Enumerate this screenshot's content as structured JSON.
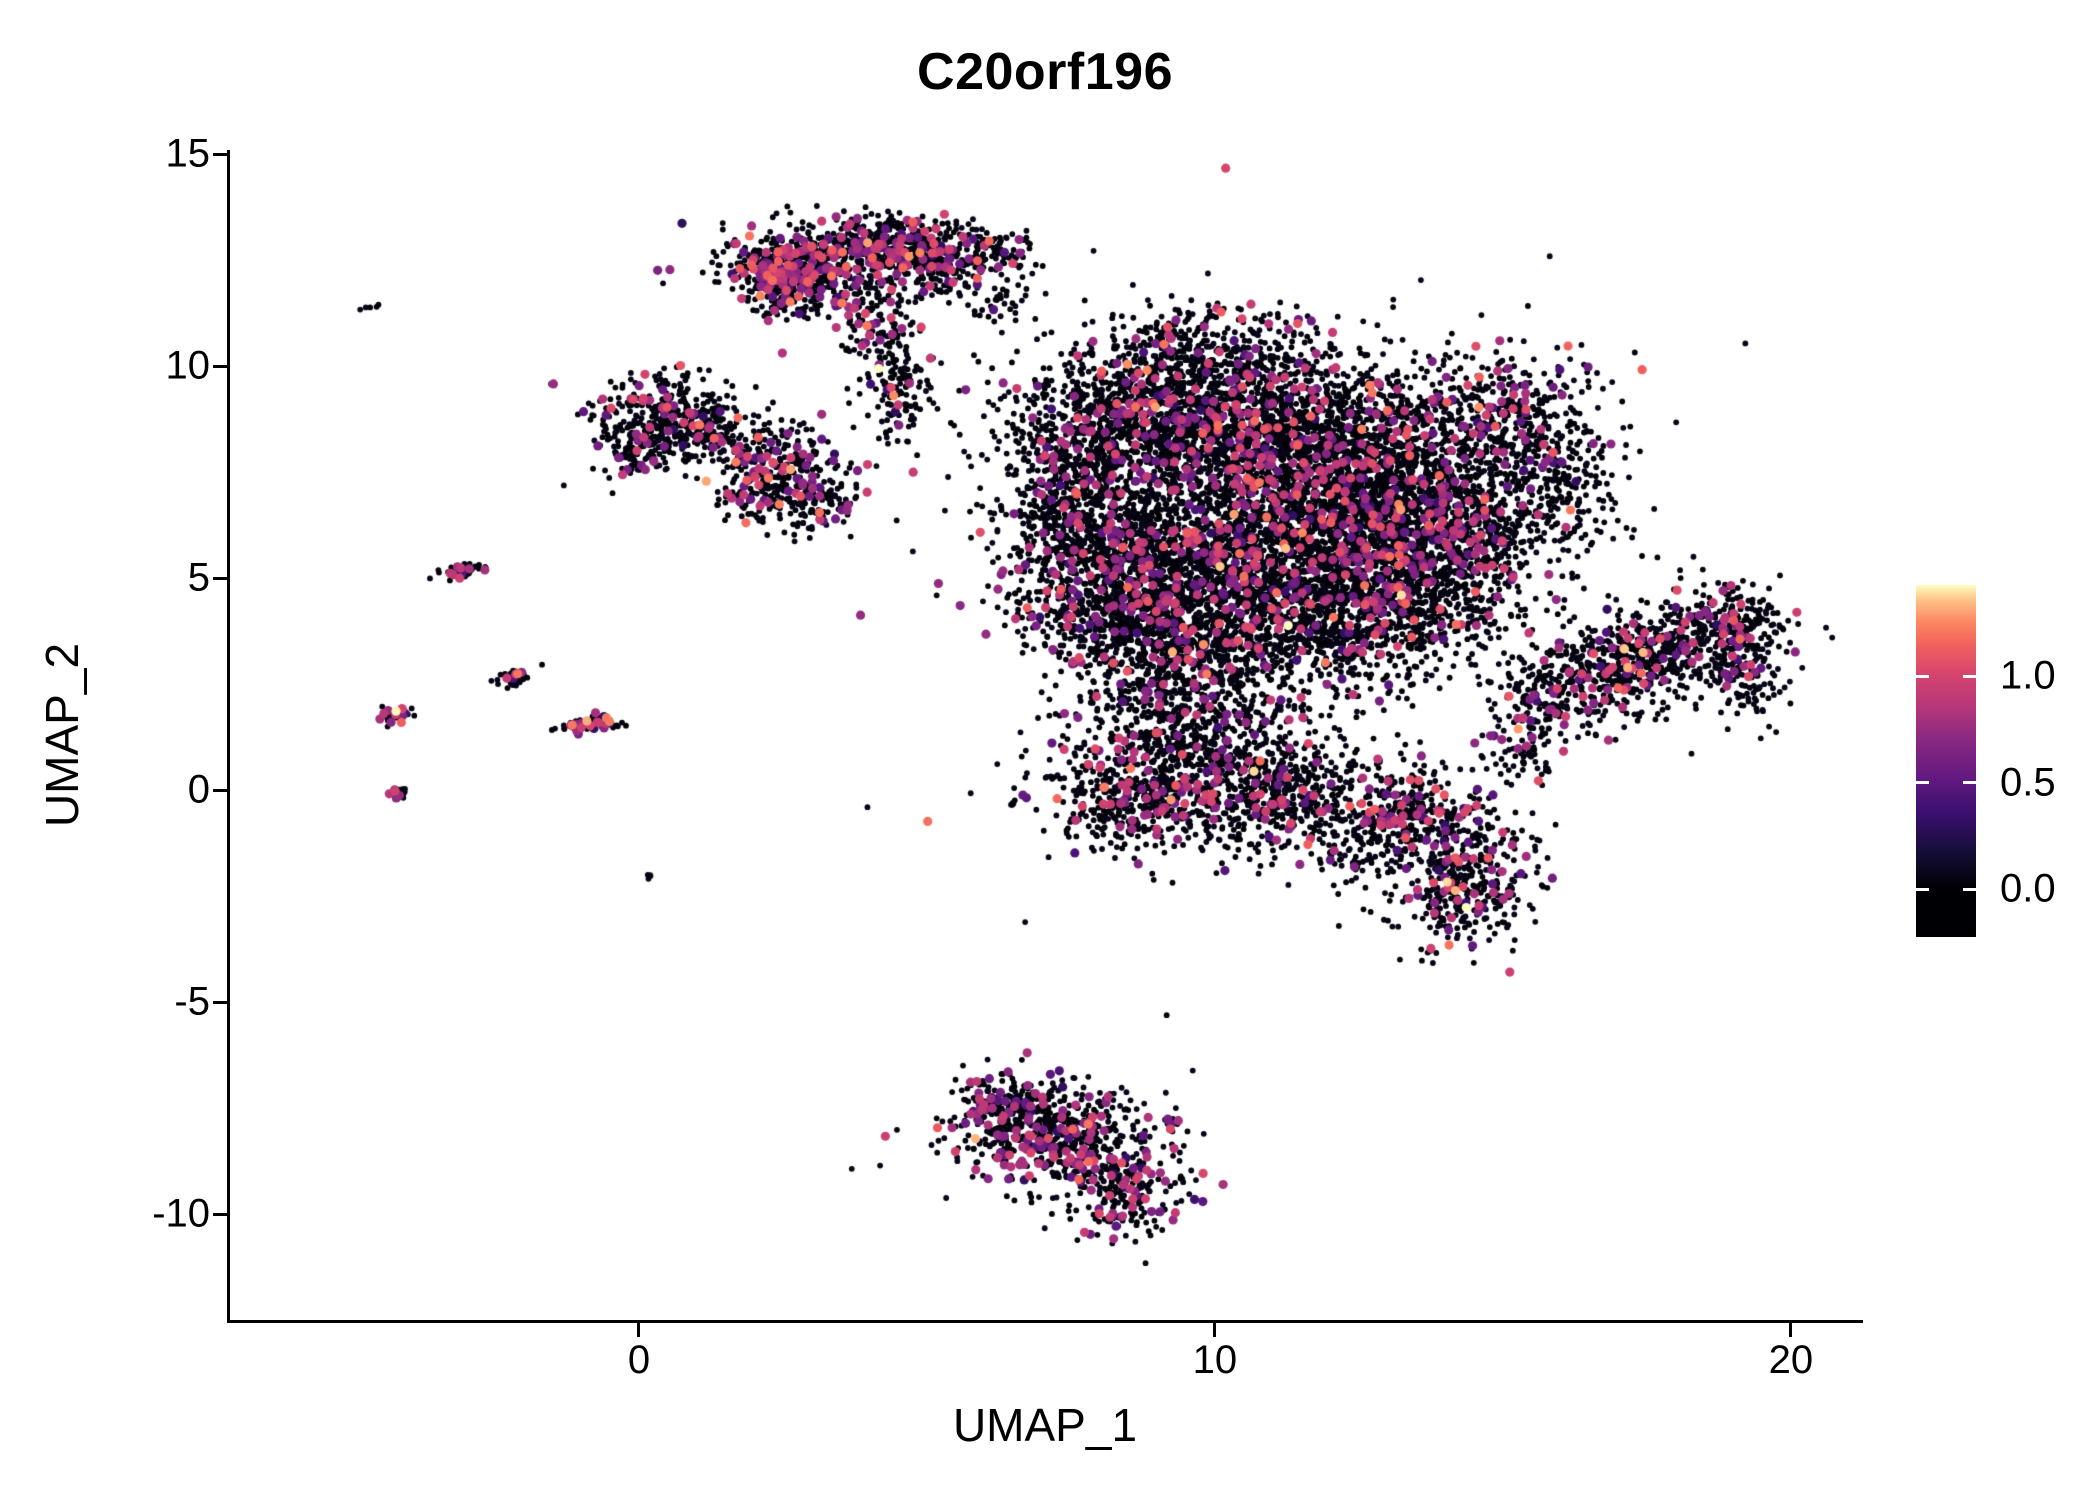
{
  "chart_data": {
    "type": "scatter",
    "plot_kind": "umap-feature-plot",
    "title": "C20orf196",
    "xlabel": "UMAP_1",
    "ylabel": "UMAP_2",
    "xlim": [
      -7.1,
      21.2
    ],
    "ylim": [
      -12.5,
      15.1
    ],
    "xticks": [
      0,
      10,
      20
    ],
    "yticks": [
      15,
      10,
      5,
      0,
      -5,
      -10
    ],
    "grid": false,
    "background": "#ffffff",
    "point_color_scale": "magma",
    "dot_radius": 2.9,
    "expr_dot_radius": 4.6,
    "expr_value_mean": 0.78,
    "expr_value_sd": 0.22,
    "expr_value_min": 0.3,
    "seed": 42,
    "cluster_fields": [
      "center_x",
      "center_y",
      "sd_x",
      "sd_y",
      "rot_deg",
      "n_points",
      "expressing_fraction"
    ],
    "clusters": [
      [
        -4.6,
        11.4,
        0.07,
        0.05,
        0,
        5,
        0.1
      ],
      [
        3.3,
        12.5,
        0.95,
        0.45,
        5,
        650,
        0.22
      ],
      [
        4.6,
        12.85,
        0.5,
        0.3,
        0,
        200,
        0.18
      ],
      [
        2.6,
        11.9,
        0.45,
        0.35,
        -20,
        180,
        0.2
      ],
      [
        4.2,
        10.9,
        0.35,
        0.55,
        0,
        130,
        0.12
      ],
      [
        4.5,
        9.3,
        0.3,
        0.6,
        0,
        110,
        0.1
      ],
      [
        6.1,
        12.8,
        0.35,
        0.25,
        0,
        70,
        0.12
      ],
      [
        6.3,
        11.5,
        0.3,
        0.5,
        0,
        40,
        0.08
      ],
      [
        5.3,
        12.3,
        0.45,
        0.4,
        0,
        130,
        0.15
      ],
      [
        0.5,
        8.8,
        0.6,
        0.5,
        0,
        330,
        0.15
      ],
      [
        -0.1,
        8.0,
        0.3,
        0.3,
        0,
        90,
        0.15
      ],
      [
        1.4,
        8.4,
        0.45,
        0.4,
        0,
        90,
        0.1
      ],
      [
        2.4,
        7.4,
        0.55,
        0.6,
        0,
        340,
        0.2
      ],
      [
        3.1,
        6.8,
        0.3,
        0.3,
        0,
        60,
        0.1
      ],
      [
        -3.1,
        5.15,
        0.22,
        0.07,
        20,
        55,
        0.25
      ],
      [
        -2.15,
        2.65,
        0.15,
        0.12,
        20,
        40,
        0.15
      ],
      [
        -0.85,
        1.55,
        0.28,
        0.09,
        12,
        70,
        0.25
      ],
      [
        -4.2,
        1.8,
        0.13,
        0.1,
        20,
        35,
        0.3
      ],
      [
        -4.15,
        -0.1,
        0.08,
        0.12,
        0,
        22,
        0.25
      ],
      [
        0.2,
        -2.05,
        0.04,
        0.04,
        0,
        4,
        0.1
      ],
      [
        8.7,
        8.8,
        1.1,
        0.9,
        0,
        1100,
        0.1
      ],
      [
        11.3,
        8.5,
        1.4,
        1.0,
        0,
        1500,
        0.1
      ],
      [
        12.9,
        6.6,
        1.2,
        1.0,
        0,
        1500,
        0.12
      ],
      [
        10.4,
        5.6,
        1.5,
        1.2,
        0,
        1700,
        0.1
      ],
      [
        8.2,
        5.4,
        0.9,
        1.1,
        0,
        800,
        0.12
      ],
      [
        9.4,
        3.4,
        1.2,
        0.9,
        0,
        800,
        0.1
      ],
      [
        11.9,
        4.1,
        1.2,
        0.9,
        0,
        800,
        0.1
      ],
      [
        13.8,
        4.7,
        0.8,
        0.8,
        0,
        450,
        0.1
      ],
      [
        9.9,
        10.4,
        0.9,
        0.5,
        0,
        260,
        0.08
      ],
      [
        7.3,
        6.9,
        0.45,
        0.9,
        0,
        250,
        0.12
      ],
      [
        14.9,
        8.8,
        0.9,
        0.8,
        0,
        450,
        0.1
      ],
      [
        15.9,
        7.2,
        0.55,
        0.8,
        0,
        220,
        0.08
      ],
      [
        14.6,
        6.1,
        0.5,
        0.6,
        0,
        200,
        0.08
      ],
      [
        9.7,
        0.8,
        1.2,
        1.0,
        0,
        850,
        0.12
      ],
      [
        8.5,
        -0.3,
        0.7,
        0.6,
        0,
        280,
        0.12
      ],
      [
        11.2,
        -0.2,
        0.8,
        0.6,
        0,
        300,
        0.1
      ],
      [
        13.3,
        -0.9,
        0.9,
        0.7,
        0,
        500,
        0.12
      ],
      [
        14.3,
        -2.4,
        0.55,
        0.7,
        -20,
        320,
        0.15
      ],
      [
        15.8,
        2.1,
        0.5,
        0.5,
        0,
        170,
        0.12
      ],
      [
        16.8,
        2.8,
        0.6,
        0.55,
        0,
        260,
        0.12
      ],
      [
        17.8,
        3.3,
        0.65,
        0.55,
        0,
        280,
        0.12
      ],
      [
        18.8,
        3.9,
        0.5,
        0.45,
        0,
        220,
        0.12
      ],
      [
        19.2,
        3.0,
        0.35,
        0.6,
        0,
        130,
        0.12
      ],
      [
        15.3,
        1.0,
        0.3,
        0.4,
        0,
        60,
        0.1
      ],
      [
        7.2,
        -8.1,
        0.85,
        0.65,
        0,
        520,
        0.2
      ],
      [
        8.5,
        -9.5,
        0.5,
        0.55,
        0,
        220,
        0.22
      ],
      [
        6.3,
        -7.5,
        0.4,
        0.4,
        0,
        140,
        0.18
      ],
      [
        9.3,
        -7.7,
        0.15,
        0.2,
        0,
        12,
        0.15
      ]
    ],
    "colorbar": {
      "vmax": 1.43,
      "base_frac": 0.136,
      "ticks": [
        {
          "label": "1.0",
          "value": 1.0
        },
        {
          "label": "0.5",
          "value": 0.5
        },
        {
          "label": "0.0",
          "value": 0.0
        }
      ]
    }
  },
  "palette": [
    [
      0.0,
      "#000004"
    ],
    [
      0.12,
      "#140e36"
    ],
    [
      0.25,
      "#3b0f70"
    ],
    [
      0.37,
      "#641a80"
    ],
    [
      0.5,
      "#8c2981"
    ],
    [
      0.6,
      "#b73779"
    ],
    [
      0.7,
      "#d3436e"
    ],
    [
      0.8,
      "#f1605d"
    ],
    [
      0.88,
      "#fb8861"
    ],
    [
      0.95,
      "#fec287"
    ],
    [
      1.0,
      "#fcfdbf"
    ]
  ]
}
